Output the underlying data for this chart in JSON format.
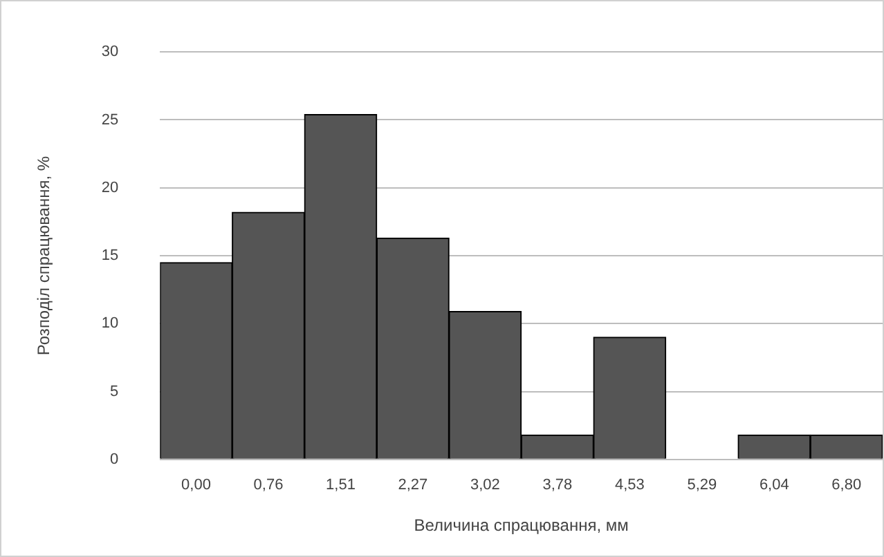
{
  "chart_data": {
    "type": "bar",
    "xlabel": "Величина спрацювання, мм",
    "ylabel": "Розподіл спрацювання, %",
    "categories": [
      "0,00",
      "0,76",
      "1,51",
      "2,27",
      "3,02",
      "3,78",
      "4,53",
      "5,29",
      "6,04",
      "6,80"
    ],
    "values": [
      14.5,
      18.2,
      25.4,
      16.3,
      10.9,
      1.8,
      9.0,
      0,
      1.8,
      1.8
    ],
    "color": "#555555",
    "ylim": [
      0,
      30
    ],
    "yticks": [
      0,
      5,
      10,
      15,
      20,
      25,
      30
    ],
    "grid": "y",
    "legend": false
  }
}
